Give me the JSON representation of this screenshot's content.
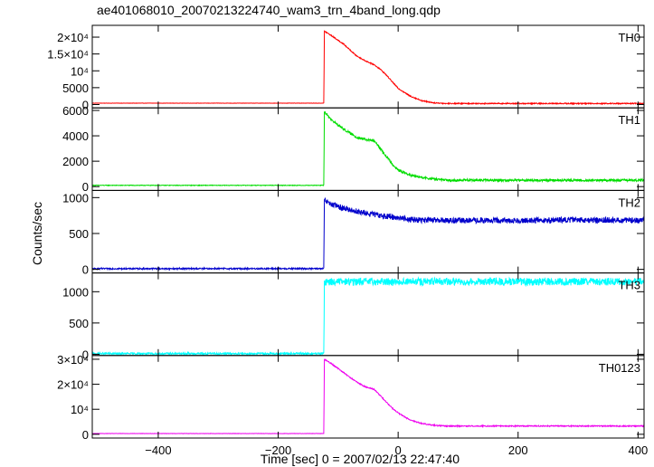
{
  "chart_data": {
    "type": "line",
    "title": "ae401068010_20070213224740_wam3_trn_4band_long.qdp",
    "xlabel": "Time [sec] 0 = 2007/02/13 22:47:40",
    "ylabel": "Counts/sec",
    "xlim": [
      -510,
      410
    ],
    "x_ticks": [
      -400,
      -200,
      0,
      200,
      400
    ],
    "x_tick_labels": [
      "−400",
      "−200",
      "0",
      "200",
      "400"
    ],
    "grid": false,
    "panels": [
      {
        "name": "TH0",
        "color": "#ff0000",
        "ylim": [
          -1000,
          23500
        ],
        "y_ticks": [
          0,
          5000,
          10000,
          15000,
          20000
        ],
        "y_tick_labels": [
          "0",
          "5000",
          "10⁴",
          "1.5×10⁴",
          "2×10⁴"
        ],
        "x": [
          -510,
          -124,
          -123,
          -110,
          -90,
          -70,
          -55,
          -40,
          -30,
          -20,
          -10,
          0,
          20,
          40,
          60,
          80,
          120,
          200,
          300,
          400
        ],
        "y": [
          400,
          400,
          21800,
          20300,
          17800,
          14500,
          13000,
          11800,
          10500,
          8800,
          6800,
          4800,
          2500,
          1100,
          500,
          300,
          300,
          300,
          300,
          300
        ],
        "noise": 150
      },
      {
        "name": "TH1",
        "color": "#00dd00",
        "ylim": [
          -300,
          6200
        ],
        "y_ticks": [
          0,
          2000,
          4000,
          6000
        ],
        "y_tick_labels": [
          "0",
          "2000",
          "4000",
          "6000"
        ],
        "x": [
          -510,
          -124,
          -123,
          -110,
          -90,
          -70,
          -55,
          -40,
          -30,
          -20,
          -10,
          0,
          20,
          40,
          60,
          80,
          120,
          200,
          300,
          400
        ],
        "y": [
          100,
          100,
          5900,
          5200,
          4500,
          3900,
          3700,
          3600,
          3000,
          2400,
          1800,
          1300,
          900,
          700,
          600,
          500,
          500,
          500,
          500,
          500
        ],
        "noise": 90
      },
      {
        "name": "TH2",
        "color": "#0000cc",
        "ylim": [
          -50,
          1100
        ],
        "y_ticks": [
          0,
          500,
          1000
        ],
        "y_tick_labels": [
          "0",
          "500",
          "1000"
        ],
        "x": [
          -510,
          -124,
          -123,
          -110,
          -90,
          -60,
          -30,
          0,
          30,
          100,
          200,
          300,
          400
        ],
        "y": [
          10,
          10,
          960,
          900,
          850,
          790,
          750,
          720,
          690,
          680,
          680,
          690,
          680
        ],
        "noise": 40
      },
      {
        "name": "TH3",
        "color": "#00ffff",
        "ylim": [
          -20,
          1300
        ],
        "y_ticks": [
          0,
          500,
          1000
        ],
        "y_tick_labels": [
          "0",
          "500",
          "1000"
        ],
        "x": [
          -510,
          -124,
          -123,
          0,
          100,
          200,
          300,
          400
        ],
        "y": [
          10,
          10,
          1160,
          1160,
          1160,
          1160,
          1160,
          1160
        ],
        "noise": 60
      },
      {
        "name": "TH0123",
        "color": "#ee00ee",
        "ylim": [
          -1500,
          31500
        ],
        "y_ticks": [
          0,
          10000,
          20000,
          30000
        ],
        "y_tick_labels": [
          "0",
          "10⁴",
          "2×10⁴",
          "3×10⁴"
        ],
        "x": [
          -510,
          -124,
          -123,
          -110,
          -90,
          -70,
          -55,
          -40,
          -30,
          -20,
          -10,
          0,
          20,
          40,
          60,
          80,
          120,
          200,
          300,
          400
        ],
        "y": [
          300,
          300,
          30000,
          28000,
          24500,
          21000,
          19000,
          18000,
          15500,
          13000,
          10500,
          8500,
          5700,
          4300,
          3600,
          3300,
          3300,
          3300,
          3300,
          3300
        ],
        "noise": 220
      }
    ]
  }
}
